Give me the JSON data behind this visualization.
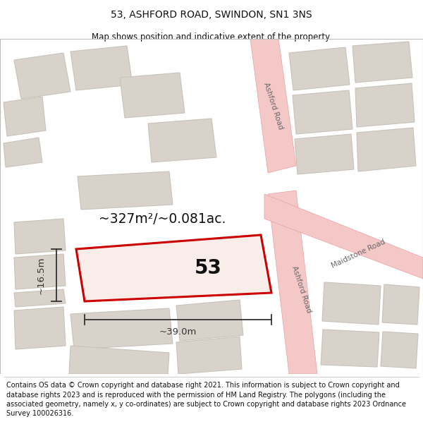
{
  "title_line1": "53, ASHFORD ROAD, SWINDON, SN1 3NS",
  "title_line2": "Map shows position and indicative extent of the property.",
  "footer_text": "Contains OS data © Crown copyright and database right 2021. This information is subject to Crown copyright and database rights 2023 and is reproduced with the permission of HM Land Registry. The polygons (including the associated geometry, namely x, y co-ordinates) are subject to Crown copyright and database rights 2023 Ordnance Survey 100026316.",
  "map_bg": "#f0ece6",
  "road_color": "#f5c8c8",
  "road_stroke": "#e8a0a0",
  "building_fc": "#d8d2ca",
  "building_ec": "#c8c2ba",
  "highlight_color": "#cc0000",
  "highlight_fc": "#f8ede8",
  "text_color": "#111111",
  "dim_color": "#333333",
  "road_text_color": "#666666",
  "title_fontsize": 10,
  "subtitle_fontsize": 8.5,
  "footer_fontsize": 7.0,
  "label_53": "53",
  "label_area": "~327m²/~0.081ac.",
  "label_width": "~39.0m",
  "label_height": "~16.5m",
  "road_label_ashford": "Ashford Road",
  "road_label_maidstone": "Maidstone Road"
}
